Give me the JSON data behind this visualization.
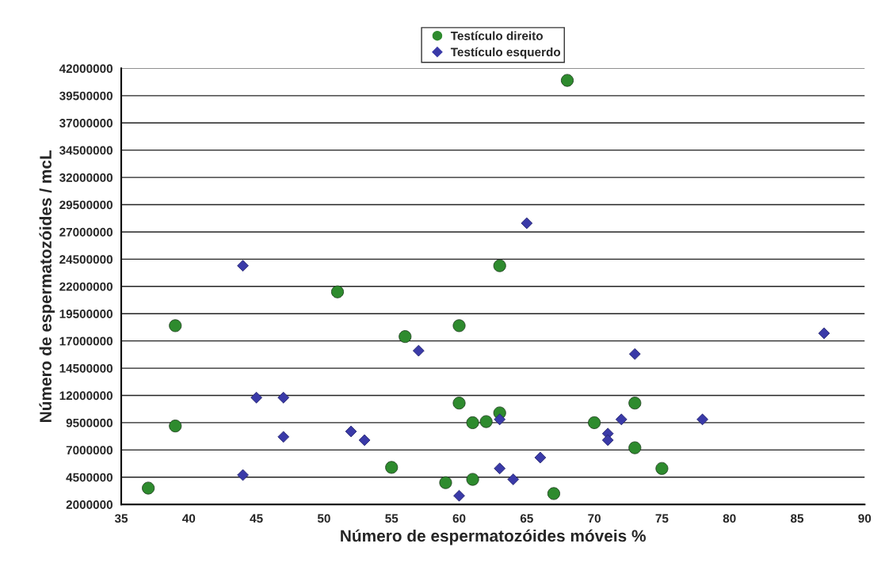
{
  "chart_data": {
    "type": "scatter",
    "xlabel": "Número de espermatozóides móveis %",
    "ylabel": "Número de espermatozóides / mcL",
    "series": [
      {
        "name": "Testículo direito",
        "color": "#2e8b2e",
        "marker": "circle",
        "x": [
          37,
          39,
          39,
          51,
          55,
          56,
          59,
          60,
          60,
          61,
          61,
          62,
          63,
          63,
          67,
          68,
          70,
          73,
          73,
          75
        ],
        "values": [
          3500000,
          18400000,
          9200000,
          21500000,
          5400000,
          17400000,
          4000000,
          18400000,
          11300000,
          4300000,
          9500000,
          9600000,
          10400000,
          23900000,
          3000000,
          40900000,
          9500000,
          11300000,
          7200000,
          5300000
        ]
      },
      {
        "name": "Testículo esquerdo",
        "color": "#3a3aa8",
        "marker": "diamond",
        "x": [
          44,
          44,
          45,
          47,
          47,
          52,
          53,
          57,
          60,
          63,
          63,
          64,
          65,
          66,
          71,
          71,
          72,
          73,
          78,
          87
        ],
        "values": [
          23900000,
          4700000,
          11800000,
          11800000,
          8200000,
          8700000,
          7900000,
          16100000,
          2800000,
          9800000,
          5300000,
          4300000,
          27800000,
          6300000,
          8500000,
          7900000,
          9800000,
          15800000,
          9800000,
          17700000
        ]
      }
    ],
    "xlim": [
      35,
      90
    ],
    "xticks": [
      35,
      40,
      45,
      50,
      55,
      60,
      65,
      70,
      75,
      80,
      85,
      90
    ],
    "ylim": [
      2000000,
      42000000
    ],
    "yticks": [
      2000000,
      4500000,
      7000000,
      9500000,
      12000000,
      14500000,
      17000000,
      19500000,
      22000000,
      24500000,
      27000000,
      29500000,
      32000000,
      34500000,
      37000000,
      39500000,
      42000000
    ],
    "grid": "y",
    "legend": "top"
  }
}
